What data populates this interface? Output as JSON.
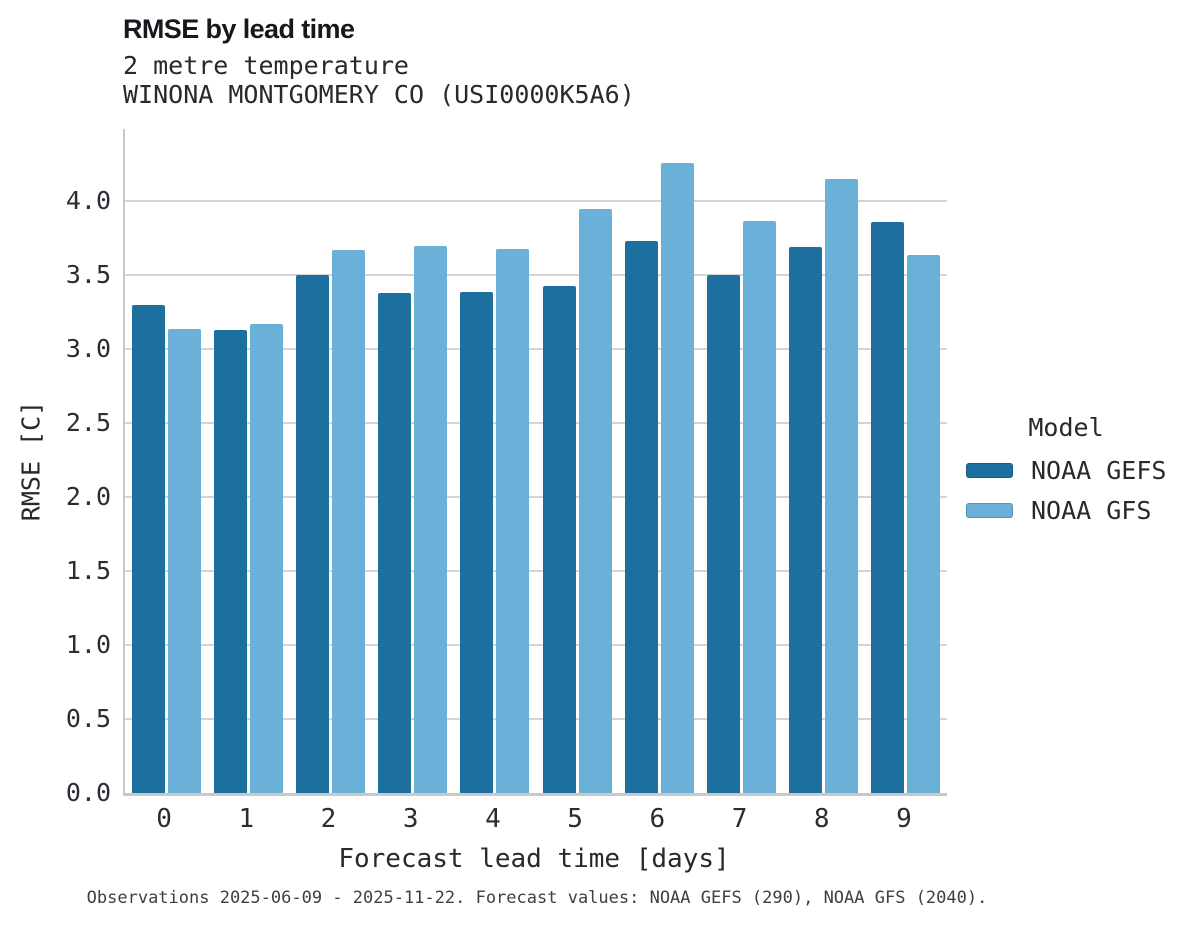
{
  "header": {
    "title": "RMSE by lead time",
    "subtitle_line1": "2 metre temperature",
    "subtitle_line2": "WINONA MONTGOMERY CO (USI0000K5A6)"
  },
  "legend": {
    "title": "Model",
    "entries": [
      {
        "label": "NOAA GEFS",
        "color": "#1d6f9e"
      },
      {
        "label": "NOAA GFS",
        "color": "#6bb0d8"
      }
    ]
  },
  "footer": {
    "text": "Observations 2025-06-09 - 2025-11-22. Forecast values: NOAA GEFS (290), NOAA GFS (2040)."
  },
  "colors": {
    "gefs_bar": "#1d6f9e",
    "gfs_bar": "#6bb0d8",
    "gridline": "#d4d4d5",
    "axis_spine": "#c7c9ca",
    "text": "#26292e",
    "footer_text": "#3a3f48"
  },
  "chart_data": {
    "type": "bar",
    "title": "RMSE by lead time",
    "subtitle": [
      "2 metre temperature",
      "WINONA MONTGOMERY CO (USI0000K5A6)"
    ],
    "categories": [
      "0",
      "1",
      "2",
      "3",
      "4",
      "5",
      "6",
      "7",
      "8",
      "9"
    ],
    "series": [
      {
        "name": "NOAA GEFS",
        "color": "#1d6f9e",
        "values": [
          3.3,
          3.13,
          3.5,
          3.38,
          3.39,
          3.43,
          3.73,
          3.5,
          3.69,
          3.86
        ]
      },
      {
        "name": "NOAA GFS",
        "color": "#6bb0d8",
        "values": [
          3.14,
          3.17,
          3.67,
          3.7,
          3.68,
          3.95,
          4.26,
          3.87,
          4.15,
          3.64
        ]
      }
    ],
    "xlabel": "Forecast lead time [days]",
    "ylabel": "RMSE [C]",
    "ylim": [
      0,
      4.49
    ],
    "yticks": [
      "0.0",
      "0.5",
      "1.0",
      "1.5",
      "2.0",
      "2.5",
      "3.0",
      "3.5",
      "4.0"
    ],
    "grid": true,
    "legend_position": "right",
    "legend_title": "Model",
    "caption": "Observations 2025-06-09 - 2025-11-22. Forecast values: NOAA GEFS (290), NOAA GFS (2040)."
  }
}
